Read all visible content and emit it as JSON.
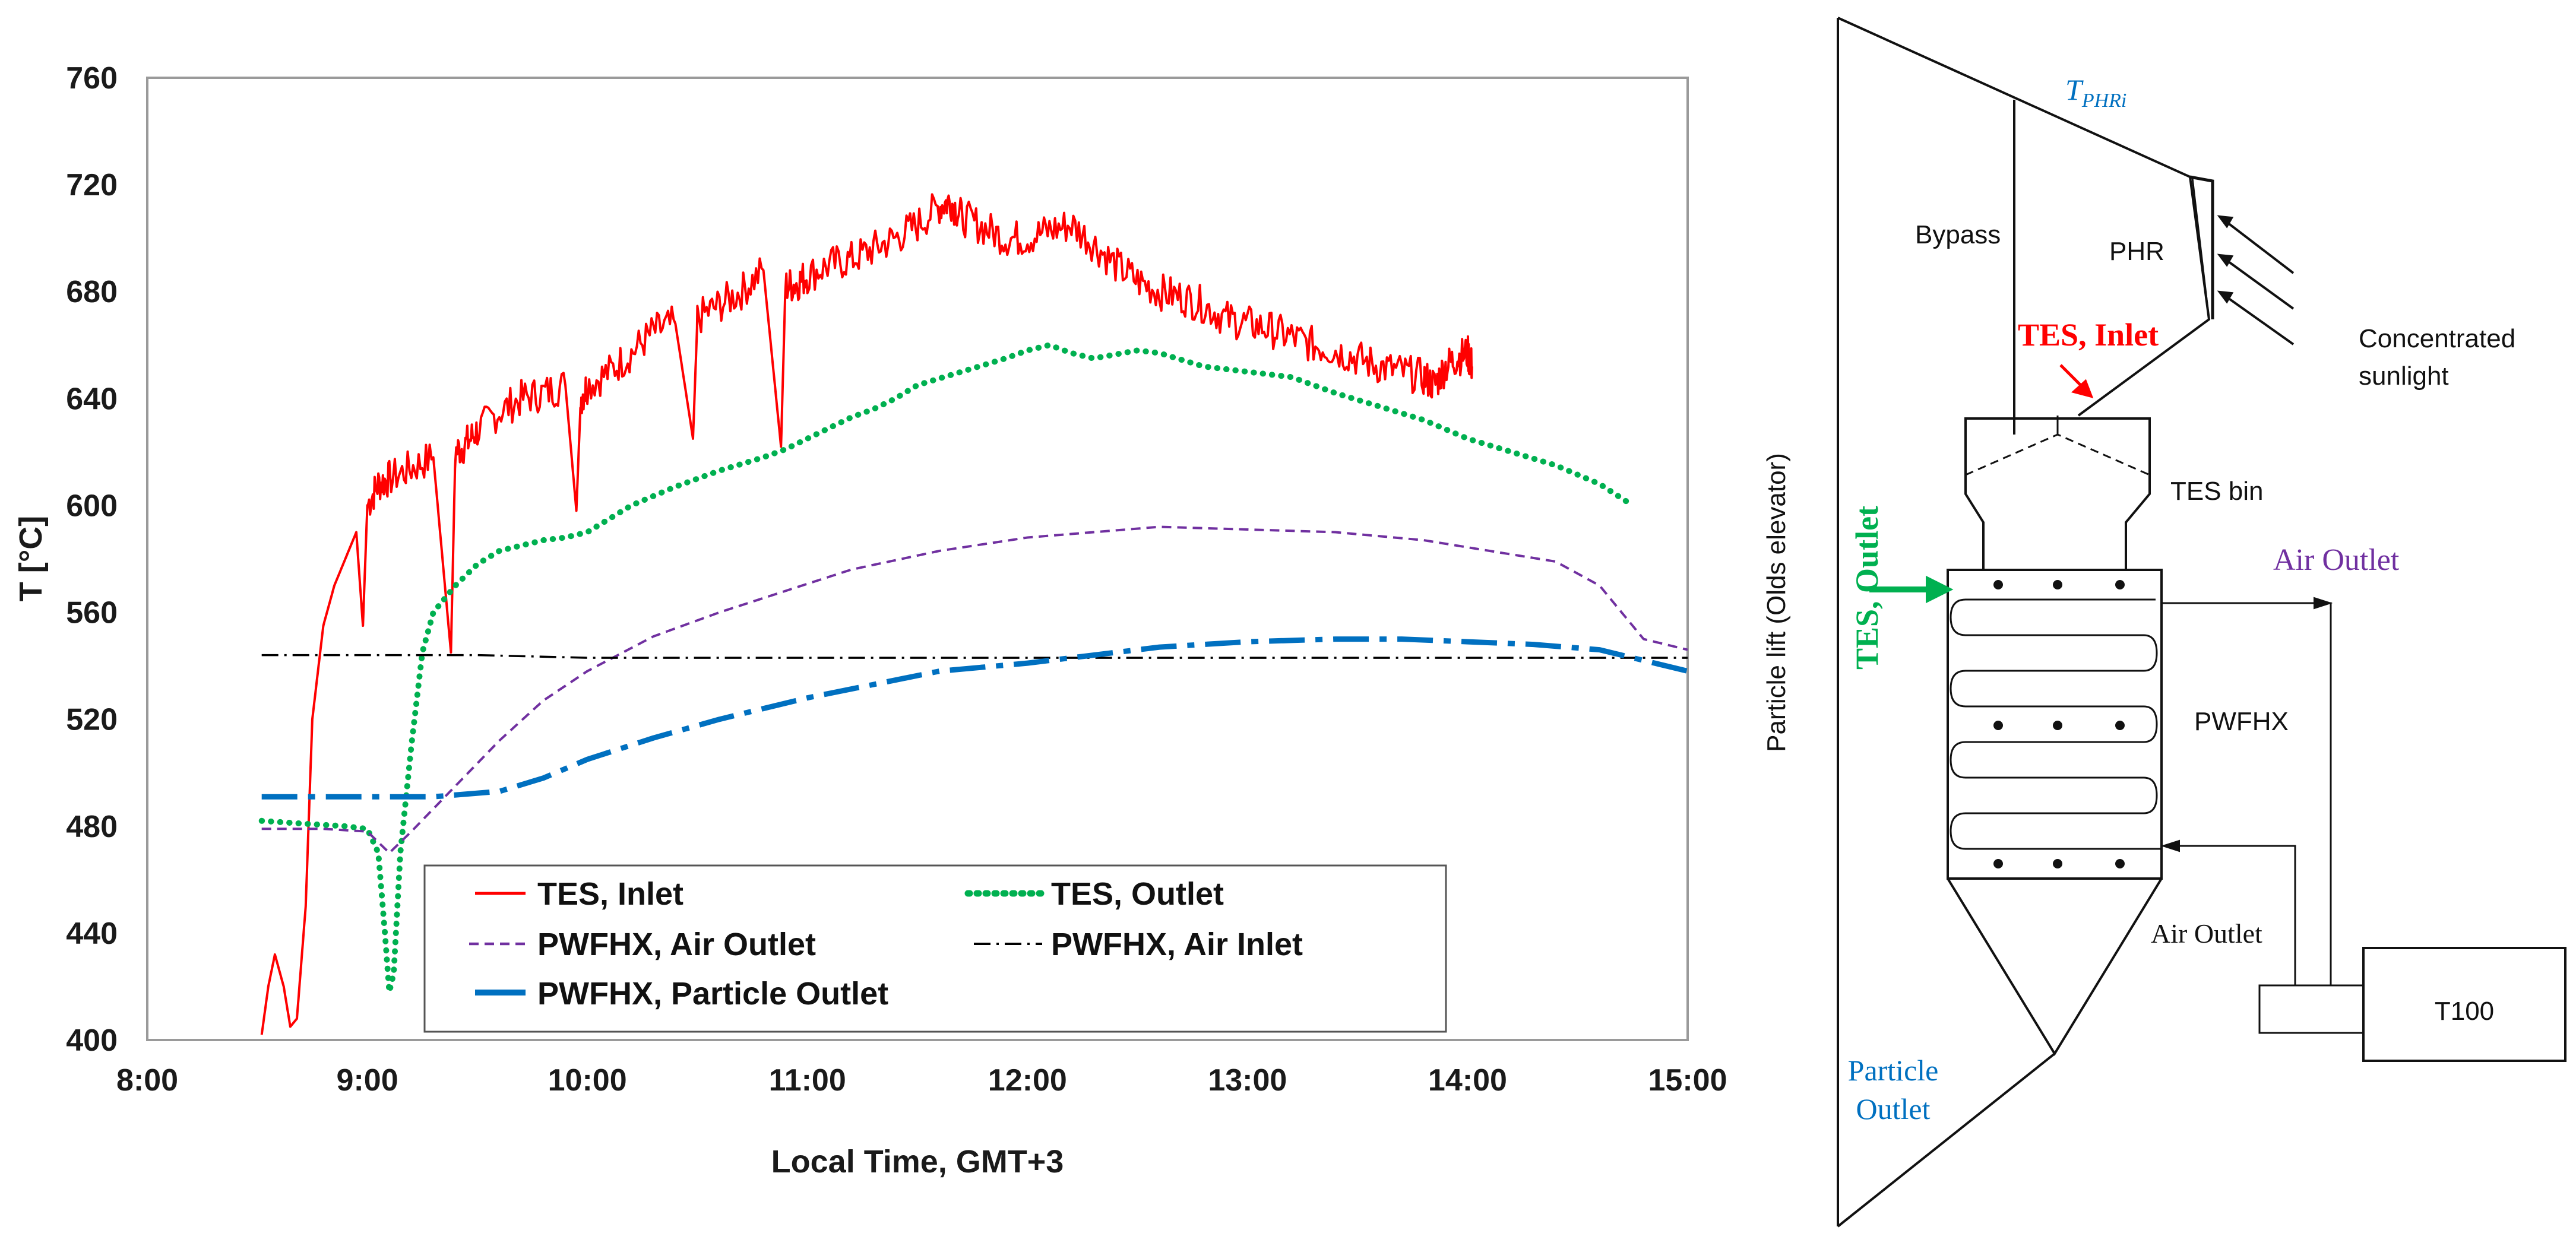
{
  "chart_data": {
    "type": "line",
    "title": "",
    "xlabel": "Local Time, GMT+3",
    "ylabel": "T [°C]",
    "xlim": [
      8,
      15
    ],
    "ylim": [
      400,
      760
    ],
    "x_ticks": [
      "8:00",
      "9:00",
      "10:00",
      "11:00",
      "12:00",
      "13:00",
      "14:00",
      "15:00"
    ],
    "y_ticks": [
      "400",
      "440",
      "480",
      "520",
      "560",
      "600",
      "640",
      "680",
      "720",
      "760"
    ],
    "legend_position": "lower-right",
    "series": [
      {
        "name": "TES, Inlet",
        "color": "#ff0000",
        "style": "solid",
        "x": [
          8.52,
          8.55,
          8.58,
          8.62,
          8.65,
          8.68,
          8.72,
          8.75,
          8.8,
          8.85,
          8.9,
          8.95,
          8.98,
          9.0,
          9.05,
          9.1,
          9.2,
          9.3,
          9.38,
          9.4,
          9.45,
          9.5,
          9.6,
          9.7,
          9.8,
          9.9,
          9.95,
          9.97,
          10.0,
          10.1,
          10.2,
          10.3,
          10.4,
          10.48,
          10.5,
          10.6,
          10.7,
          10.8,
          10.88,
          10.9,
          10.95,
          11.0,
          11.1,
          11.2,
          11.3,
          11.4,
          11.5,
          11.6,
          11.65,
          11.7,
          11.8,
          11.9,
          12.0,
          12.1,
          12.2,
          12.3,
          12.4,
          12.5,
          12.6,
          12.7,
          12.8,
          12.9,
          13.0,
          13.1,
          13.2,
          13.3,
          13.4,
          13.5,
          13.6,
          13.7,
          13.8,
          13.85,
          13.9,
          13.95,
          14.0,
          14.02
        ],
        "values": [
          402,
          420,
          432,
          420,
          405,
          408,
          450,
          520,
          555,
          570,
          580,
          590,
          555,
          600,
          608,
          610,
          614,
          618,
          545,
          620,
          623,
          628,
          635,
          640,
          642,
          645,
          598,
          640,
          645,
          650,
          657,
          665,
          668,
          625,
          670,
          675,
          680,
          688,
          622,
          682,
          683,
          686,
          690,
          692,
          696,
          700,
          705,
          712,
          714,
          708,
          704,
          700,
          700,
          703,
          705,
          698,
          690,
          684,
          680,
          678,
          675,
          670,
          668,
          666,
          663,
          660,
          658,
          655,
          652,
          650,
          648,
          645,
          652,
          655,
          657,
          652
        ]
      },
      {
        "name": "TES, Outlet",
        "color": "#00b050",
        "style": "dotted",
        "x": [
          8.52,
          8.7,
          8.9,
          9.0,
          9.05,
          9.08,
          9.1,
          9.12,
          9.15,
          9.2,
          9.25,
          9.3,
          9.4,
          9.5,
          9.6,
          9.7,
          9.8,
          9.9,
          10.0,
          10.2,
          10.4,
          10.6,
          10.8,
          10.9,
          11.0,
          11.2,
          11.3,
          11.4,
          11.5,
          11.7,
          11.9,
          12.0,
          12.1,
          12.2,
          12.3,
          12.5,
          12.6,
          12.8,
          13.0,
          13.2,
          13.4,
          13.6,
          13.8,
          14.0,
          14.2,
          14.4,
          14.6,
          14.75
        ],
        "values": [
          482,
          481,
          480,
          479,
          470,
          440,
          418,
          425,
          470,
          510,
          545,
          560,
          570,
          578,
          583,
          585,
          587,
          588,
          590,
          600,
          607,
          613,
          618,
          621,
          625,
          633,
          636,
          640,
          645,
          650,
          655,
          658,
          660,
          657,
          655,
          658,
          657,
          652,
          650,
          648,
          642,
          637,
          632,
          625,
          620,
          615,
          608,
          600
        ]
      },
      {
        "name": "PWFHX, Air Outlet",
        "color": "#7030a0",
        "style": "dashed",
        "x": [
          8.52,
          8.8,
          9.0,
          9.1,
          9.2,
          9.4,
          9.6,
          9.8,
          10.0,
          10.3,
          10.6,
          10.9,
          11.2,
          11.6,
          12.0,
          12.3,
          12.6,
          13.0,
          13.4,
          13.8,
          14.1,
          14.4,
          14.6,
          14.7,
          14.8,
          15.0
        ],
        "values": [
          479,
          479,
          478,
          470,
          478,
          495,
          512,
          527,
          538,
          551,
          560,
          568,
          576,
          583,
          588,
          590,
          592,
          591,
          590,
          587,
          583,
          579,
          570,
          560,
          550,
          546
        ]
      },
      {
        "name": "PWFHX, Air Inlet",
        "color": "#000000",
        "style": "dashdot",
        "x": [
          8.52,
          9.0,
          9.5,
          10.0,
          10.5,
          11.0,
          11.5,
          12.0,
          12.5,
          13.0,
          13.5,
          14.0,
          14.5,
          15.0
        ],
        "values": [
          544,
          544,
          544,
          543,
          543,
          543,
          543,
          543,
          543,
          543,
          543,
          543,
          543,
          543
        ]
      },
      {
        "name": "PWFHX, Particle Outlet",
        "color": "#0070c0",
        "style": "longdashdot",
        "x": [
          8.52,
          8.8,
          9.0,
          9.3,
          9.6,
          9.8,
          10.0,
          10.3,
          10.6,
          11.0,
          11.3,
          11.6,
          12.0,
          12.3,
          12.6,
          13.0,
          13.4,
          13.7,
          14.0,
          14.3,
          14.6,
          14.8,
          15.0
        ],
        "values": [
          491,
          491,
          491,
          491,
          493,
          498,
          505,
          513,
          520,
          528,
          533,
          538,
          541,
          544,
          547,
          549,
          550,
          550,
          549,
          548,
          546,
          542,
          538
        ]
      }
    ]
  },
  "diagram": {
    "t_phr_label": "T",
    "t_phr_sub": "PHRi",
    "bypass": "Bypass",
    "phr": "PHR",
    "tes_inlet": "TES, Inlet",
    "concentrated_1": "Concentrated",
    "concentrated_2": "sunlight",
    "tes_bin": "TES bin",
    "particle_lift": "Particle lift (Olds elevator)",
    "tes_outlet": "TES, Outlet",
    "air_outlet_top": "Air Outlet",
    "pwfhx": "PWFHX",
    "air_outlet_bottom": "Air Outlet",
    "t100": "T100",
    "particle_outlet_1": "Particle",
    "particle_outlet_2": "Outlet",
    "colors": {
      "red": "#ff0000",
      "green": "#00b050",
      "purple": "#7030a0",
      "blue": "#0070c0"
    }
  }
}
